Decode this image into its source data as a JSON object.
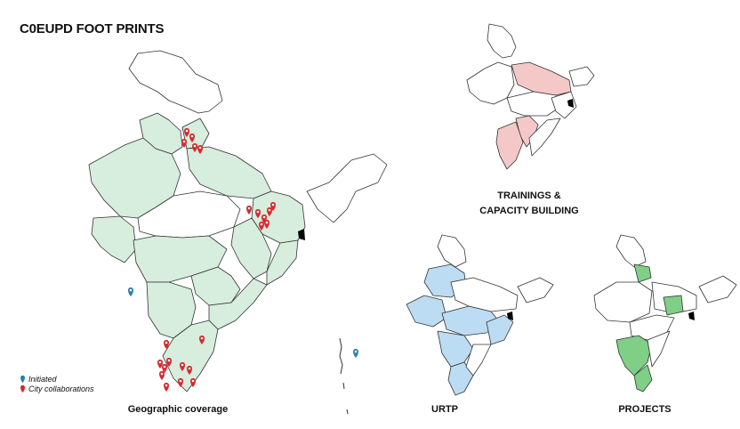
{
  "title": "C0EUPD FOOT PRINTS",
  "colors": {
    "geographic": "#d7eddd",
    "trainings": "#f5c8c8",
    "urtp": "#bcdcf3",
    "projects": "#7fcf87",
    "initiated_marker": "#2a7fb0",
    "city_marker": "#d8282e"
  },
  "captions": {
    "geographic": "Geographic coverage",
    "trainings_line1": "TRAININGS &",
    "trainings_line2": "CAPACITY BUILDING",
    "urtp": "URTP",
    "projects": "PROJECTS"
  },
  "legend": {
    "initiated": "Initiated",
    "city": "City collaborations"
  }
}
